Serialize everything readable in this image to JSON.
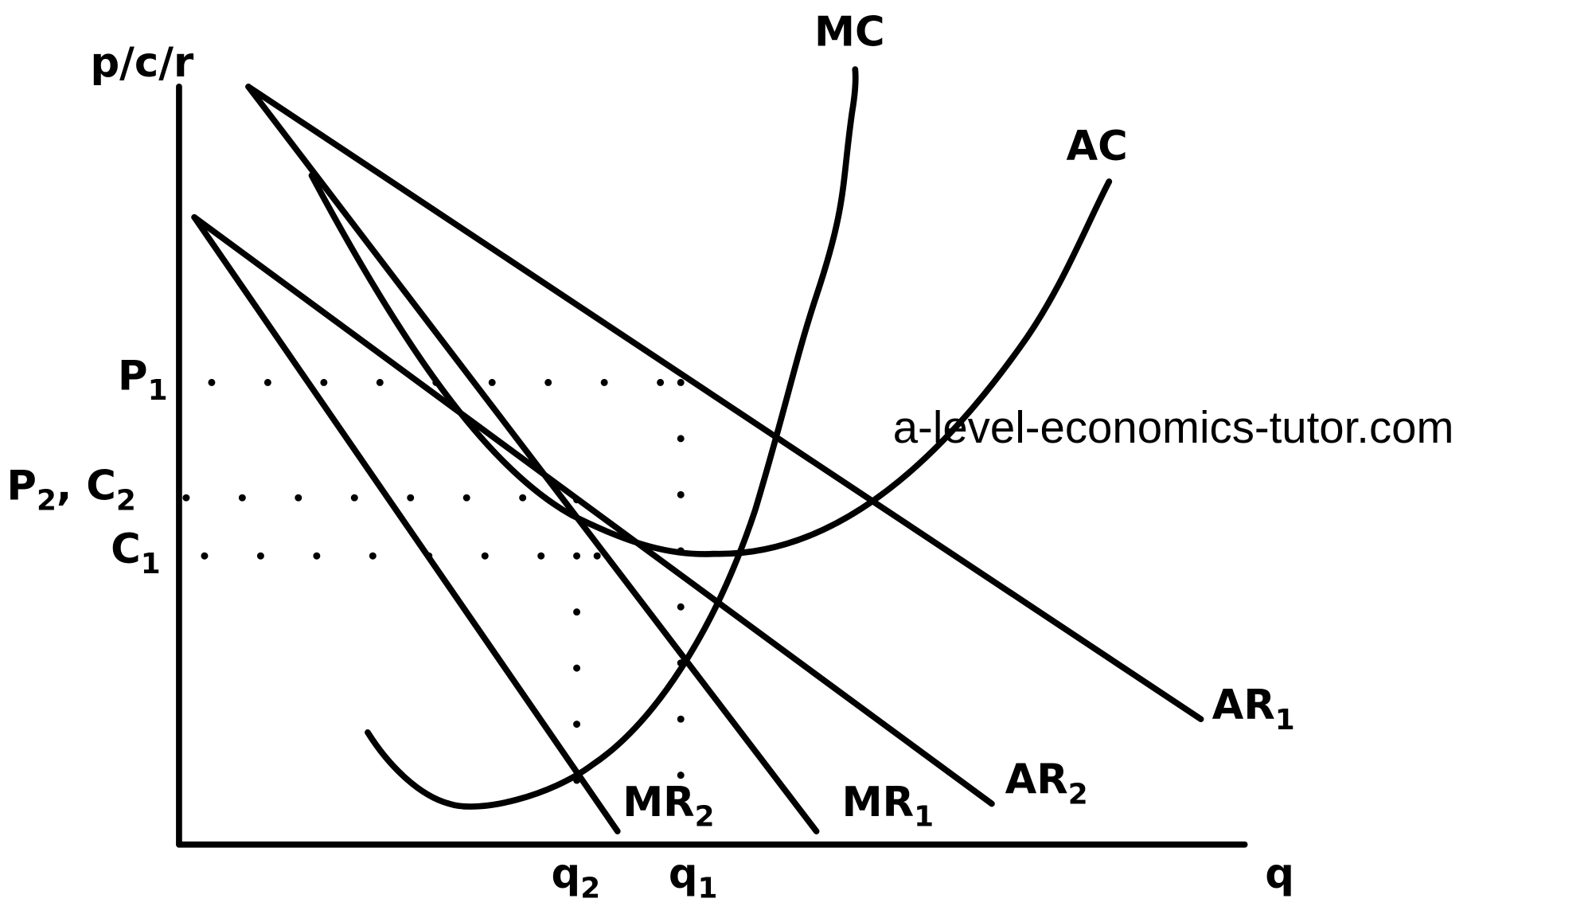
{
  "axis_labels": {
    "y": {
      "parts": [
        "p/c/r"
      ]
    },
    "x": {
      "parts": [
        "q"
      ]
    }
  },
  "curves": [
    {
      "parts": [
        "MC"
      ]
    },
    {
      "parts": [
        "AC"
      ]
    },
    {
      "parts": [
        "AR",
        "1"
      ]
    },
    {
      "parts": [
        "AR",
        "2"
      ]
    },
    {
      "parts": [
        "MR",
        "1"
      ]
    },
    {
      "parts": [
        "MR",
        "2"
      ]
    }
  ],
  "x_markers": [
    {
      "parts": [
        "q",
        "2"
      ]
    },
    {
      "parts": [
        "q",
        "1"
      ]
    }
  ],
  "y_markers": [
    {
      "parts": [
        "P",
        "1"
      ]
    },
    {
      "parts": [
        "P",
        "2",
        ", C",
        "2"
      ]
    },
    {
      "parts": [
        "C",
        "1"
      ]
    }
  ],
  "watermark": "a-level-economics-tutor.com"
}
